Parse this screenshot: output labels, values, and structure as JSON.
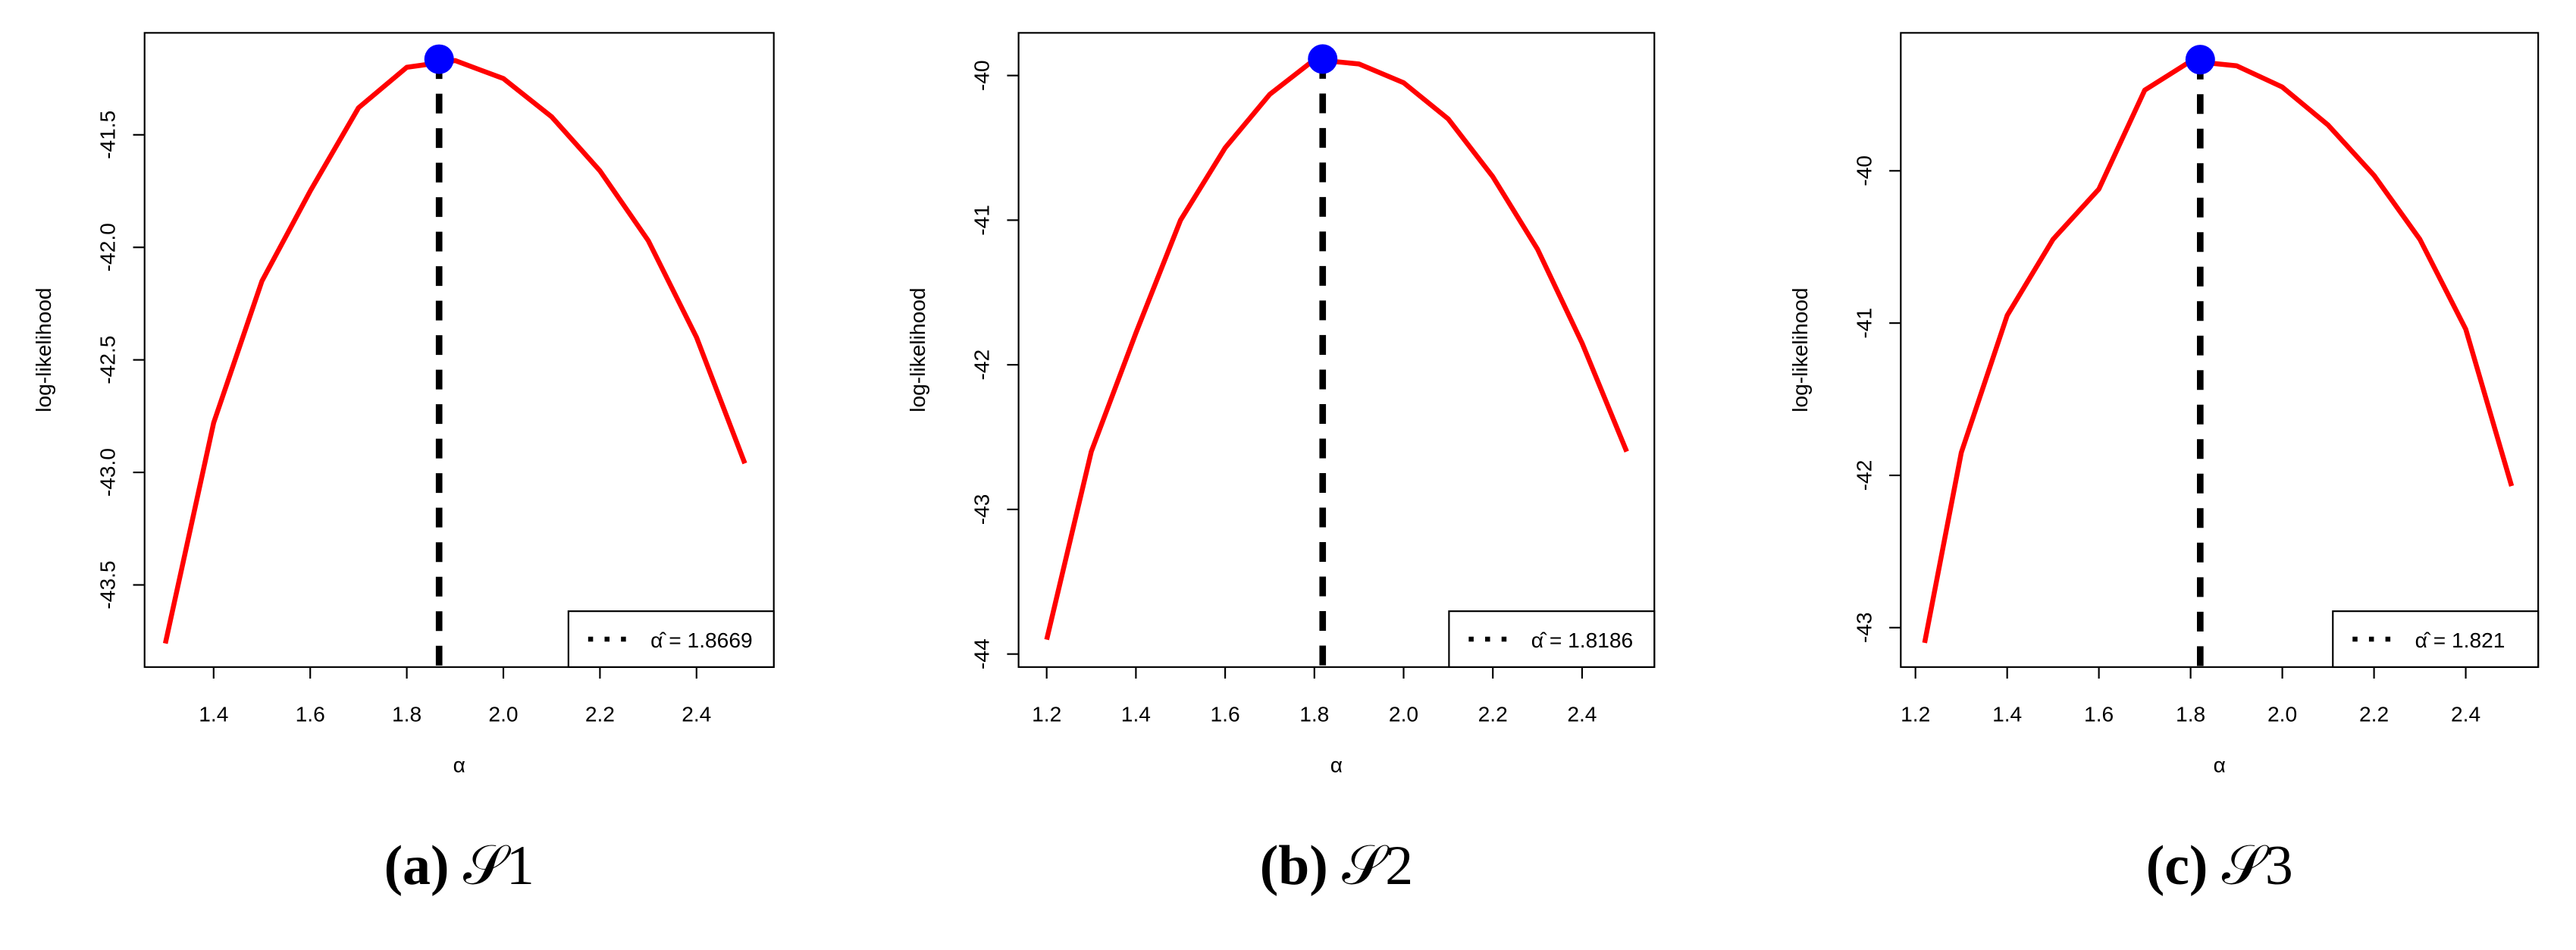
{
  "chart_data": [
    {
      "type": "line",
      "caption_label": "(a)",
      "caption": "𝒮1",
      "xlabel": "α",
      "ylabel": "log-likelihood",
      "x": [
        1.3,
        1.4,
        1.5,
        1.6,
        1.7,
        1.8,
        1.9,
        2.0,
        2.1,
        2.2,
        2.3,
        2.4,
        2.5
      ],
      "series": [
        {
          "color": "#ff0000",
          "values": [
            -43.76,
            -42.78,
            -42.15,
            -41.75,
            -41.38,
            -41.2,
            -41.17,
            -41.25,
            -41.42,
            -41.66,
            -41.97,
            -42.4,
            -42.96
          ]
        }
      ],
      "estimate": {
        "value": 1.8669,
        "loglik": -41.164,
        "label": "α̂ = 1.8669",
        "color": "#0000ff"
      },
      "legend": "bottom right",
      "xlim": [
        1.257,
        2.56
      ],
      "ylim": [
        -43.865,
        -41.047
      ],
      "xticks": [
        1.4,
        1.6,
        1.8,
        {
          "value": 2,
          "label": "2.0"
        },
        2.2,
        2.4
      ],
      "yticks": [
        -41.5,
        {
          "value": -42,
          "label": "-42.0"
        },
        -42.5,
        {
          "value": -43,
          "label": "-43.0"
        },
        -43.5
      ]
    },
    {
      "type": "line",
      "caption_label": "(b)",
      "caption": "𝒮2",
      "xlabel": "α",
      "ylabel": "log-likelihood",
      "x": [
        1.2,
        1.3,
        1.4,
        1.5,
        1.6,
        1.7,
        1.8,
        1.9,
        2.0,
        2.1,
        2.2,
        2.3,
        2.4,
        2.5
      ],
      "series": [
        {
          "color": "#ff0000",
          "values": [
            -43.9,
            -42.6,
            -41.78,
            -41.0,
            -40.5,
            -40.13,
            -39.89,
            -39.92,
            -40.05,
            -40.3,
            -40.7,
            -41.2,
            -41.85,
            -42.6
          ]
        }
      ],
      "estimate": {
        "value": 1.8186,
        "loglik": -39.886,
        "label": "α̂ = 1.8186",
        "color": "#0000ff"
      },
      "legend": "bottom right",
      "xlim": [
        1.137,
        2.562
      ],
      "ylim": [
        -44.09,
        -39.705
      ],
      "xticks": [
        1.2,
        1.4,
        1.6,
        1.8,
        {
          "value": 2,
          "label": "2.0"
        },
        2.2,
        2.4
      ],
      "yticks": [
        -40,
        -41,
        -42,
        -43,
        -44
      ]
    },
    {
      "type": "line",
      "caption_label": "(c)",
      "caption": "𝒮3",
      "xlabel": "α",
      "ylabel": "log-likelihood",
      "x": [
        1.22,
        1.3,
        1.4,
        1.5,
        1.6,
        1.7,
        1.8,
        1.9,
        2.0,
        2.1,
        2.2,
        2.3,
        2.4,
        2.5
      ],
      "series": [
        {
          "color": "#ff0000",
          "values": [
            -43.1,
            -41.85,
            -40.95,
            -40.45,
            -40.12,
            -39.47,
            -39.28,
            -39.31,
            -39.45,
            -39.7,
            -40.03,
            -40.45,
            -41.04,
            -42.07
          ]
        }
      ],
      "estimate": {
        "value": 1.821,
        "loglik": -39.27,
        "label": "α̂ = 1.821",
        "color": "#0000ff"
      },
      "legend": "bottom right",
      "xlim": [
        1.168,
        2.558
      ],
      "ylim": [
        -43.259,
        -39.094
      ],
      "xticks": [
        1.2,
        1.4,
        1.6,
        1.8,
        {
          "value": 2,
          "label": "2.0"
        },
        2.2,
        2.4
      ],
      "yticks": [
        -40,
        -41,
        -42,
        -43
      ]
    }
  ]
}
